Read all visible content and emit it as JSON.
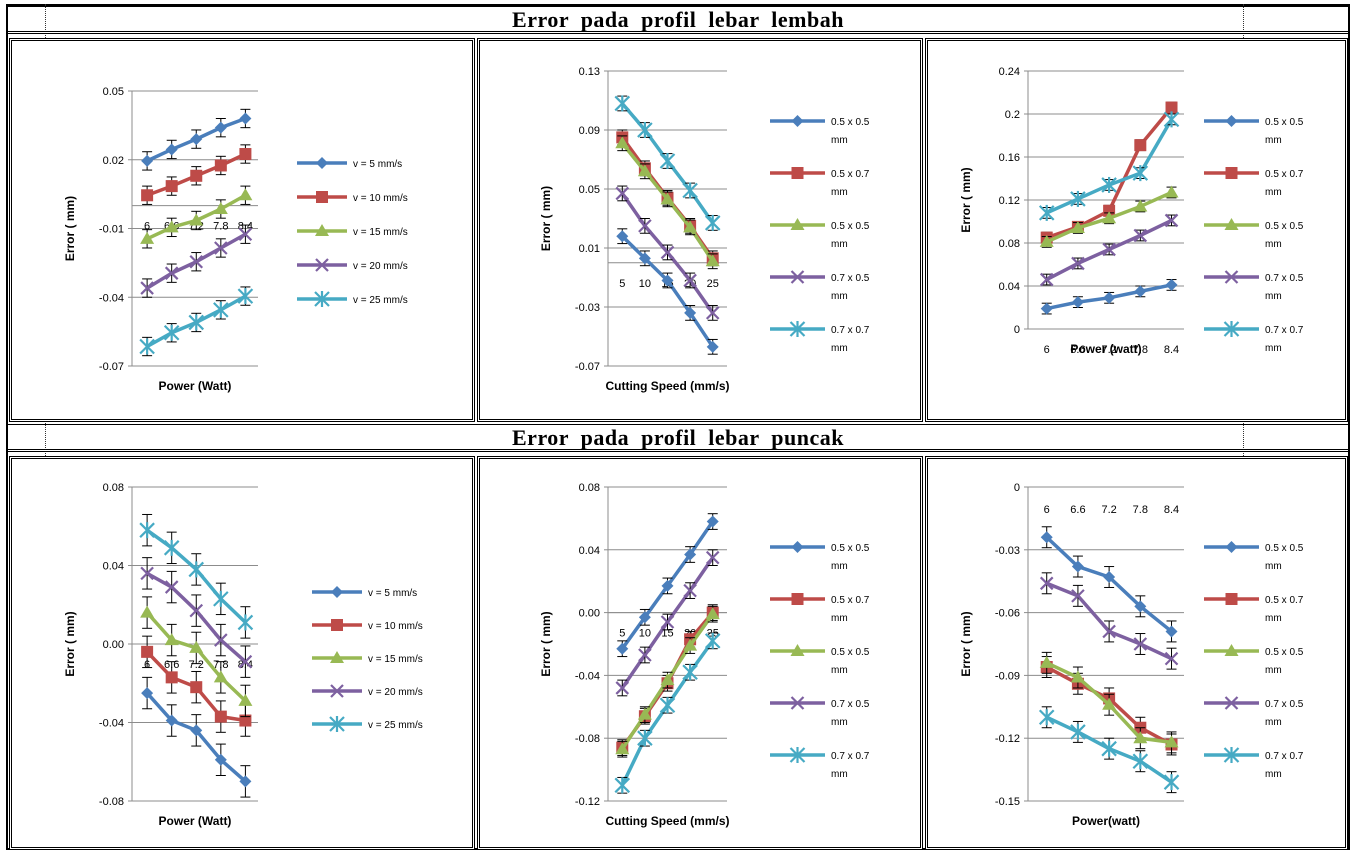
{
  "section_titles": [
    "Error  pada  profil  lebar  lembah",
    "Error  pada  profil  lebar  puncak"
  ],
  "colors": {
    "blue": "#4a7ebb",
    "red": "#be4b48",
    "green": "#98b954",
    "purple": "#7d60a0",
    "cyan": "#46aac4"
  },
  "chart_data": [
    {
      "type": "line",
      "xlabel": "Power  (Watt)",
      "ylabel": "Error ( mm)",
      "categories": [
        "6",
        "6.6",
        "7.2",
        "7.8",
        "8.4"
      ],
      "ylim": [
        -0.07,
        0.05
      ],
      "yticks": [
        "0.05",
        "0.02",
        "-0.01",
        "-0.04",
        "-0.07"
      ],
      "series": [
        {
          "name": "v = 5 mm/s",
          "values": [
            0.0195,
            0.0245,
            0.029,
            0.034,
            0.038
          ]
        },
        {
          "name": "v = 10 mm/s",
          "values": [
            0.0045,
            0.0085,
            0.013,
            0.0175,
            0.0225
          ]
        },
        {
          "name": "v = 15 mm/s",
          "values": [
            -0.0145,
            -0.0095,
            -0.0065,
            -0.0015,
            0.0045
          ]
        },
        {
          "name": "v = 20 mm/s",
          "values": [
            -0.036,
            -0.0295,
            -0.0245,
            -0.0185,
            -0.0125
          ]
        },
        {
          "name": "v = 25 mm/s",
          "values": [
            -0.0615,
            -0.0555,
            -0.051,
            -0.0455,
            -0.0395
          ]
        }
      ]
    },
    {
      "type": "line",
      "xlabel": "Cutting Speed (mm/s)",
      "ylabel": "Error ( mm)",
      "categories": [
        "5",
        "10",
        "15",
        "20",
        "25"
      ],
      "ylim": [
        -0.07,
        0.13
      ],
      "yticks": [
        "0.13",
        "0.09",
        "0.05",
        "0.01",
        "-0.03",
        "-0.07"
      ],
      "series": [
        {
          "name": "0.5 x 0.5 mm",
          "values": [
            0.018,
            0.003,
            -0.012,
            -0.034,
            -0.057
          ]
        },
        {
          "name": "0.5 x 0.7 mm",
          "values": [
            0.085,
            0.064,
            0.044,
            0.025,
            0.003
          ]
        },
        {
          "name": "0.5 x 0.5 mm",
          "values": [
            0.081,
            0.062,
            0.043,
            0.024,
            0.001
          ]
        },
        {
          "name": "0.7 x 0.5 mm",
          "values": [
            0.047,
            0.025,
            0.007,
            -0.012,
            -0.034
          ]
        },
        {
          "name": "0.7 x 0.7 mm",
          "values": [
            0.108,
            0.09,
            0.069,
            0.049,
            0.027
          ]
        }
      ]
    },
    {
      "type": "line",
      "xlabel": "Power  (watt)",
      "ylabel": "Error ( mm)",
      "categories": [
        "6",
        "6.6",
        "7.2",
        "7.8",
        "8.4"
      ],
      "ylim": [
        0,
        0.24
      ],
      "yticks": [
        "0.24",
        "0.2",
        "0.16",
        "0.12",
        "0.08",
        "0.04",
        "0"
      ],
      "series": [
        {
          "name": "0.5 x 0.5 mm",
          "values": [
            0.019,
            0.025,
            0.029,
            0.035,
            0.041
          ]
        },
        {
          "name": "0.5 x 0.7 mm",
          "values": [
            0.085,
            0.095,
            0.11,
            0.171,
            0.206
          ]
        },
        {
          "name": "0.5 x 0.5 mm",
          "values": [
            0.081,
            0.094,
            0.103,
            0.114,
            0.127
          ]
        },
        {
          "name": "0.7 x 0.5 mm",
          "values": [
            0.046,
            0.061,
            0.074,
            0.087,
            0.101
          ]
        },
        {
          "name": "0.7 x 0.7 mm",
          "values": [
            0.108,
            0.121,
            0.134,
            0.145,
            0.195
          ]
        }
      ]
    },
    {
      "type": "line",
      "xlabel": "Power  (Watt)",
      "ylabel": "Error ( mm)",
      "categories": [
        "6",
        "6.6",
        "7.2",
        "7.8",
        "8.4"
      ],
      "ylim": [
        -0.08,
        0.08
      ],
      "yticks": [
        "0.08",
        "0.04",
        "0.00",
        "-0.04",
        "-0.08"
      ],
      "series": [
        {
          "name": "v = 5 mm/s",
          "values": [
            -0.025,
            -0.039,
            -0.044,
            -0.059,
            -0.07
          ]
        },
        {
          "name": "v = 10 mm/s",
          "values": [
            -0.004,
            -0.017,
            -0.022,
            -0.037,
            -0.039
          ]
        },
        {
          "name": "v = 15 mm/s",
          "values": [
            0.016,
            0.002,
            -0.002,
            -0.017,
            -0.029
          ]
        },
        {
          "name": "v = 20 mm/s",
          "values": [
            0.036,
            0.029,
            0.017,
            0.002,
            -0.009
          ]
        },
        {
          "name": "v = 25 mm/s",
          "values": [
            0.058,
            0.049,
            0.038,
            0.023,
            0.011
          ]
        }
      ]
    },
    {
      "type": "line",
      "xlabel": "Cutting Speed (mm/s)",
      "ylabel": "Error ( mm)",
      "categories": [
        "5",
        "10",
        "15",
        "20",
        "25"
      ],
      "ylim": [
        -0.12,
        0.08
      ],
      "yticks": [
        "0.08",
        "0.04",
        "0.00",
        "-0.04",
        "-0.08",
        "-0.12"
      ],
      "series": [
        {
          "name": "0.5 x 0.5 mm",
          "values": [
            -0.023,
            -0.003,
            0.017,
            0.037,
            0.058
          ]
        },
        {
          "name": "0.5 x 0.7 mm",
          "values": [
            -0.086,
            -0.066,
            -0.045,
            -0.017,
            0.0
          ]
        },
        {
          "name": "0.5 x 0.5 mm",
          "values": [
            -0.087,
            -0.065,
            -0.043,
            -0.021,
            -0.001
          ]
        },
        {
          "name": "0.7 x 0.5 mm",
          "values": [
            -0.048,
            -0.027,
            -0.006,
            0.014,
            0.035
          ]
        },
        {
          "name": "0.7 x 0.7 mm",
          "values": [
            -0.11,
            -0.08,
            -0.059,
            -0.038,
            -0.018
          ]
        }
      ]
    },
    {
      "type": "line",
      "xlabel": "Power(watt)",
      "ylabel": "Error ( mm)",
      "categories": [
        "6",
        "6.6",
        "7.2",
        "7.8",
        "8.4"
      ],
      "ylim": [
        -0.15,
        0
      ],
      "yticks": [
        "0",
        "-0.03",
        "-0.06",
        "-0.09",
        "-0.12",
        "-0.15"
      ],
      "series": [
        {
          "name": "0.5 x 0.5 mm",
          "values": [
            -0.024,
            -0.038,
            -0.043,
            -0.057,
            -0.069
          ]
        },
        {
          "name": "0.5 x 0.7 mm",
          "values": [
            -0.086,
            -0.094,
            -0.101,
            -0.115,
            -0.123
          ]
        },
        {
          "name": "0.5 x 0.5 mm",
          "values": [
            -0.084,
            -0.091,
            -0.104,
            -0.12,
            -0.122
          ]
        },
        {
          "name": "0.7 x 0.5 mm",
          "values": [
            -0.046,
            -0.052,
            -0.069,
            -0.075,
            -0.082
          ]
        },
        {
          "name": "0.7 x 0.7 mm",
          "values": [
            -0.11,
            -0.117,
            -0.125,
            -0.131,
            -0.141
          ]
        }
      ]
    }
  ]
}
